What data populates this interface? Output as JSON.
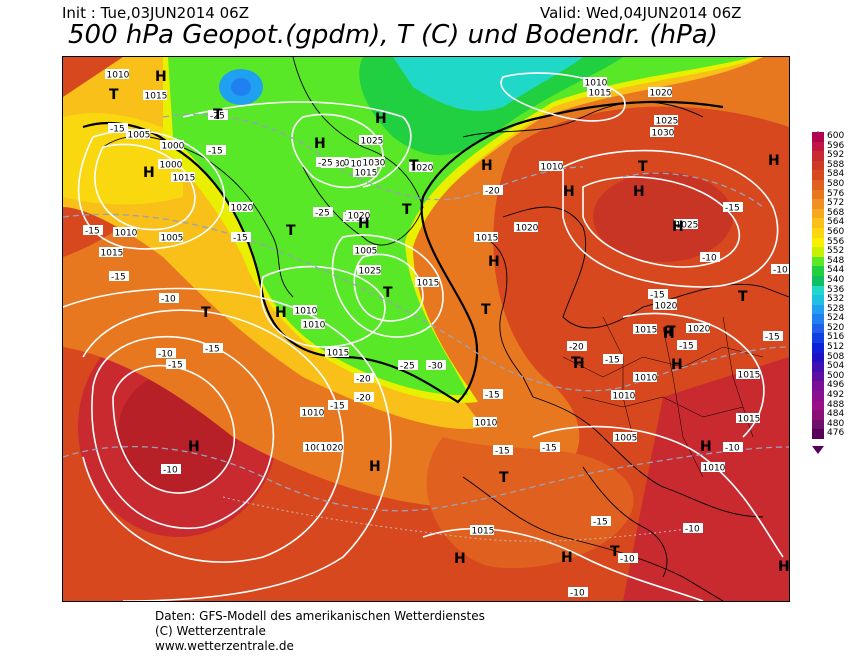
{
  "header": {
    "init": "Init : Tue,03JUN2014 06Z",
    "valid": "Valid: Wed,04JUN2014 06Z",
    "title": "500 hPa Geopot.(gpdm), T (C) und Bodendr. (hPa)"
  },
  "legend": {
    "values": [
      "600",
      "596",
      "592",
      "588",
      "584",
      "580",
      "576",
      "572",
      "568",
      "564",
      "560",
      "556",
      "552",
      "548",
      "544",
      "540",
      "536",
      "532",
      "528",
      "524",
      "520",
      "516",
      "512",
      "508",
      "504",
      "500",
      "496",
      "492",
      "488",
      "484",
      "480",
      "476"
    ],
    "colors": [
      "#b0004f",
      "#c01545",
      "#c82a30",
      "#cf3a25",
      "#d8481f",
      "#e06020",
      "#e87820",
      "#ef9020",
      "#f5a820",
      "#f8c018",
      "#fad810",
      "#f8f000",
      "#c8f000",
      "#58e828",
      "#20d040",
      "#10c060",
      "#20d8c8",
      "#20c0e0",
      "#20a0f0",
      "#2080f0",
      "#2060e8",
      "#1040e0",
      "#1020d8",
      "#2010c8",
      "#4010b0",
      "#6010a0",
      "#7a1098",
      "#8a1090",
      "#9a1088",
      "#8a1078",
      "#701068",
      "#580058"
    ]
  },
  "pressure_labels": [
    "1010",
    "1015",
    "1005",
    "1000",
    "1015",
    "1020",
    "1025",
    "1030",
    "1020",
    "1010",
    "1015",
    "1020",
    "1005",
    "1010",
    "1015",
    "1020",
    "1025",
    "1030",
    "1025",
    "1020",
    "1015",
    "1010",
    "1005",
    "1000",
    "1010",
    "1015",
    "1020",
    "1025",
    "1030",
    "1020",
    "1015",
    "1010",
    "1005",
    "1010",
    "1015",
    "1020",
    "1010",
    "1015",
    "1010",
    "1005",
    "1015",
    "1020",
    "1025",
    "1020",
    "1015",
    "1010",
    "1020",
    "1015",
    "1010"
  ],
  "temp_labels": [
    "-15",
    "-15",
    "-25",
    "-15",
    "-15",
    "-25",
    "-25",
    "-20",
    "-15",
    "-15",
    "-10",
    "-10",
    "-15",
    "-20",
    "-25",
    "-30",
    "-20",
    "-15",
    "-10",
    "-15",
    "-15",
    "-15",
    "-20",
    "-15",
    "-15",
    "-15",
    "-15",
    "-10",
    "-10",
    "-15",
    "-10",
    "-10",
    "-10",
    "-10",
    "-15"
  ],
  "markers": [
    "T",
    "H",
    "H",
    "T",
    "H",
    "H",
    "T",
    "H",
    "T",
    "T",
    "H",
    "H",
    "T",
    "H",
    "H",
    "H",
    "T",
    "H",
    "T",
    "H",
    "T",
    "H",
    "H",
    "T",
    "H",
    "T",
    "T",
    "H",
    "H",
    "T",
    "H",
    "H",
    "H",
    "H",
    "T",
    "H"
  ],
  "credits": {
    "line1": "Daten: GFS-Modell des amerikanischen Wetterdienstes",
    "line2": "(C) Wetterzentrale",
    "line3": "www.wetterzentrale.de"
  }
}
